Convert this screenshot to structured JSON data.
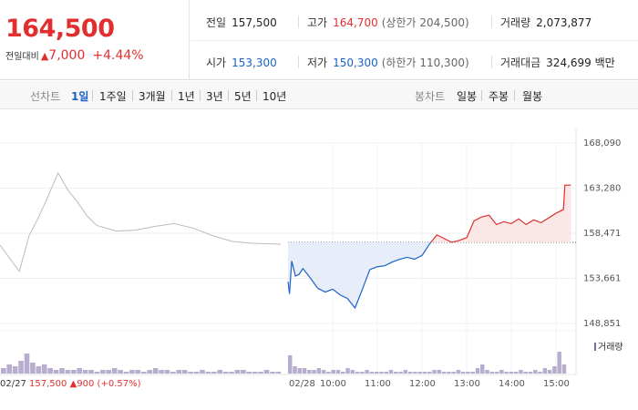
{
  "summary": {
    "price": "164,500",
    "change_label": "전일대비",
    "change_arrow": "▲",
    "change_value": "7,000",
    "change_pct": "+4.44%"
  },
  "stats": {
    "prev_label": "전일",
    "prev_value": "157,500",
    "high_label": "고가",
    "high_value": "164,700",
    "upper_limit": "(상한가 204,500)",
    "volume_label": "거래량",
    "volume_value": "2,073,877",
    "open_label": "시가",
    "open_value": "153,300",
    "low_label": "저가",
    "low_value": "150,300",
    "lower_limit": "(하한가 110,300)",
    "amount_label": "거래대금",
    "amount_value": "324,699 백만"
  },
  "tabs": {
    "line_group": "선차트",
    "line_items": [
      "1일",
      "1주일",
      "3개월",
      "1년",
      "3년",
      "5년",
      "10년"
    ],
    "selected": "1일",
    "candle_group": "봉차트",
    "candle_items": [
      "일봉",
      "주봉",
      "월봉"
    ]
  },
  "colors": {
    "up": "#e12f2f",
    "down": "#1b62c9",
    "prev_day_line": "#bbbbbb",
    "volume": "#7a6aa8"
  },
  "prev_day": {
    "date": "02/27",
    "close": "157,500",
    "arrow": "▲",
    "change": "900",
    "pct": "(+0.57%)"
  },
  "volume_legend": "거래량",
  "chart_data": {
    "type": "line",
    "date": "02/28",
    "ylim": [
      148851,
      168090
    ],
    "y_ticks": [
      "168,090",
      "163,280",
      "158,471",
      "153,661",
      "148,851"
    ],
    "x_ticks": [
      "02/28",
      "10:00",
      "11:00",
      "12:00",
      "13:00",
      "14:00",
      "15:00"
    ],
    "reference_price": 157500,
    "prev_day_series": [
      [
        0,
        157200
      ],
      [
        0.5,
        155800
      ],
      [
        1.0,
        154400
      ],
      [
        1.5,
        158200
      ],
      [
        2.0,
        160200
      ],
      [
        2.5,
        162500
      ],
      [
        3.0,
        164900
      ],
      [
        3.5,
        163100
      ],
      [
        4.0,
        161800
      ],
      [
        4.5,
        160300
      ],
      [
        5.0,
        159300
      ],
      [
        6.0,
        158700
      ],
      [
        7.0,
        158800
      ],
      [
        8.0,
        159200
      ],
      [
        9.0,
        159500
      ],
      [
        10.0,
        159000
      ],
      [
        11.0,
        158200
      ],
      [
        12.0,
        157600
      ],
      [
        13.0,
        157400
      ],
      [
        14.5,
        157300
      ]
    ],
    "today_series": [
      [
        "09:00",
        153300
      ],
      [
        "09:02",
        152000
      ],
      [
        "09:05",
        155500
      ],
      [
        "09:10",
        153900
      ],
      [
        "09:15",
        154100
      ],
      [
        "09:20",
        154700
      ],
      [
        "09:30",
        153700
      ],
      [
        "09:40",
        152600
      ],
      [
        "09:50",
        152200
      ],
      [
        "10:00",
        152500
      ],
      [
        "10:10",
        151900
      ],
      [
        "10:20",
        151500
      ],
      [
        "10:30",
        150500
      ],
      [
        "10:40",
        152500
      ],
      [
        "10:50",
        154600
      ],
      [
        "11:00",
        154900
      ],
      [
        "11:10",
        155000
      ],
      [
        "11:20",
        155400
      ],
      [
        "11:30",
        155700
      ],
      [
        "11:40",
        155900
      ],
      [
        "11:50",
        155700
      ],
      [
        "12:00",
        156100
      ],
      [
        "12:10",
        157300
      ],
      [
        "12:20",
        158300
      ],
      [
        "12:30",
        157900
      ],
      [
        "12:40",
        157500
      ],
      [
        "12:50",
        157700
      ],
      [
        "13:00",
        158000
      ],
      [
        "13:10",
        159800
      ],
      [
        "13:20",
        160200
      ],
      [
        "13:30",
        160400
      ],
      [
        "13:40",
        159400
      ],
      [
        "13:50",
        159700
      ],
      [
        "14:00",
        159500
      ],
      [
        "14:10",
        160000
      ],
      [
        "14:20",
        159400
      ],
      [
        "14:30",
        159900
      ],
      [
        "14:40",
        159600
      ],
      [
        "14:50",
        160100
      ],
      [
        "15:00",
        160600
      ],
      [
        "15:10",
        161000
      ],
      [
        "15:12",
        163600
      ],
      [
        "15:20",
        163600
      ]
    ],
    "volume": {
      "prev_day": [
        3,
        5,
        4,
        7,
        11,
        6,
        4,
        5,
        3,
        2,
        3,
        2,
        2,
        3,
        2,
        2,
        1,
        2,
        2,
        3,
        2,
        1,
        2,
        2,
        1,
        2,
        3,
        2,
        2,
        1,
        2,
        2,
        1,
        1,
        2,
        1,
        1,
        2,
        1,
        1,
        2,
        2,
        1,
        1,
        1,
        2,
        1,
        1
      ],
      "today": [
        10,
        4,
        3,
        3,
        2,
        2,
        3,
        2,
        1,
        2,
        2,
        1,
        3,
        2,
        1,
        1,
        2,
        1,
        1,
        1,
        1,
        2,
        1,
        1,
        2,
        1,
        1,
        1,
        1,
        1,
        2,
        2,
        1,
        1,
        1,
        2,
        1,
        1,
        1,
        3,
        5,
        2,
        1,
        1,
        2,
        1,
        1,
        1,
        2,
        1,
        1,
        2,
        1,
        3,
        2,
        4,
        12,
        5
      ]
    }
  }
}
